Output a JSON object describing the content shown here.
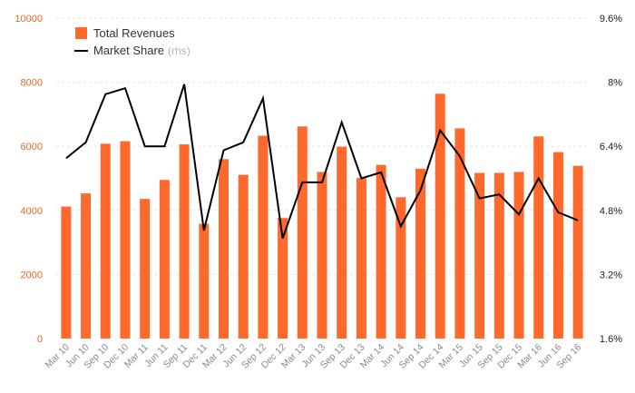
{
  "chart_data": {
    "type": "bar",
    "categories": [
      "Mar 10",
      "Jun 10",
      "Sep 10",
      "Dec 10",
      "Mar 11",
      "Jun 11",
      "Sep 11",
      "Dec 11",
      "Mar 12",
      "Jun 12",
      "Sep 12",
      "Dec 12",
      "Mar 13",
      "Jun 13",
      "Sep 13",
      "Dec 13",
      "Mar 14",
      "Jun 14",
      "Sep 14",
      "Dec 14",
      "Mar 15",
      "Jun 15",
      "Sep 15",
      "Dec 15",
      "Mar 16",
      "Jun 16",
      "Sep 16"
    ],
    "series": [
      {
        "name": "Total Revenues",
        "type": "bar",
        "axis": "left",
        "color": "#ff6a2c",
        "values": [
          4120,
          4530,
          6080,
          6160,
          4360,
          4950,
          6060,
          3580,
          5600,
          5110,
          6330,
          3760,
          6620,
          5200,
          5990,
          5010,
          5420,
          4410,
          5300,
          7640,
          6560,
          5170,
          5170,
          5200,
          6310,
          5820,
          5390
        ]
      },
      {
        "name": "Market Share",
        "name_suffix": "(rhs)",
        "type": "line",
        "axis": "right",
        "color": "#000000",
        "values": [
          6.1,
          6.5,
          7.7,
          7.85,
          6.4,
          6.4,
          7.95,
          4.3,
          6.3,
          6.5,
          7.6,
          4.1,
          5.5,
          5.5,
          7.0,
          5.6,
          5.75,
          4.4,
          5.3,
          6.8,
          6.15,
          5.1,
          5.2,
          4.7,
          5.6,
          4.75,
          4.55
        ]
      }
    ],
    "y_left": {
      "ylim": [
        0,
        10000
      ],
      "ticks": [
        "0",
        "2000",
        "4000",
        "6000",
        "8000",
        "10000"
      ],
      "color": "#f26522"
    },
    "y_right": {
      "ylim": [
        1.6,
        9.6
      ],
      "ticks": [
        "1.6%",
        "3.2%",
        "4.8%",
        "6.4%",
        "8%",
        "9.6%"
      ],
      "color": "#222222"
    },
    "grid": true,
    "legend": "top-left"
  },
  "legend": {
    "bar_label": "Total Revenues",
    "line_label": "Market Share",
    "line_note": "(rhs)"
  }
}
